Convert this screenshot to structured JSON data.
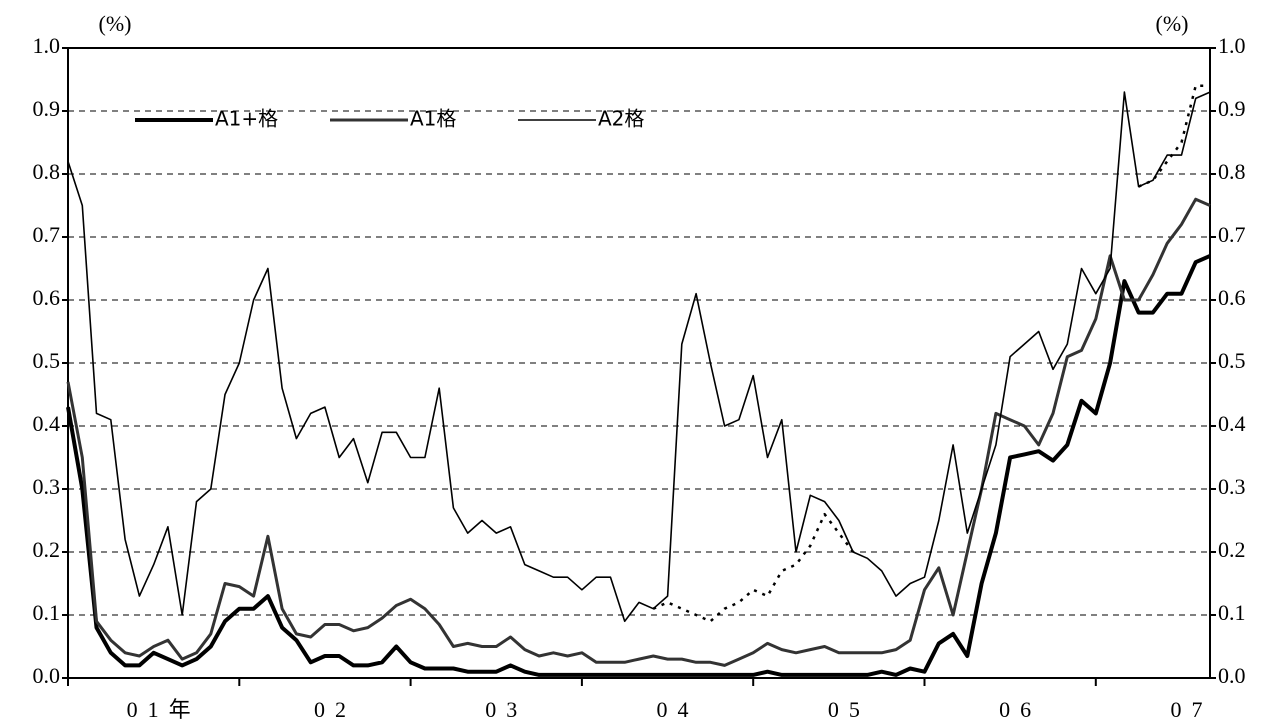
{
  "chart_data": {
    "type": "line",
    "y_label": "(%)",
    "y2_label": "(%)",
    "categories": [
      null,
      null,
      null,
      null,
      null,
      null,
      "01年",
      null,
      null,
      null,
      null,
      null,
      null,
      null,
      null,
      null,
      null,
      null,
      "02",
      null,
      null,
      null,
      null,
      null,
      null,
      null,
      null,
      null,
      null,
      null,
      "03",
      null,
      null,
      null,
      null,
      null,
      null,
      null,
      null,
      null,
      null,
      null,
      "04",
      null,
      null,
      null,
      null,
      null,
      null,
      null,
      null,
      null,
      null,
      null,
      "05",
      null,
      null,
      null,
      null,
      null,
      null,
      null,
      null,
      null,
      null,
      null,
      "06",
      null,
      null,
      null,
      null,
      null,
      null,
      null,
      null,
      null,
      null,
      null,
      "07",
      null,
      null
    ],
    "series": [
      {
        "name": "A1+格",
        "color": "#000000",
        "line_width": 4,
        "values": [
          0.43,
          0.3,
          0.08,
          0.04,
          0.02,
          0.02,
          0.04,
          0.03,
          0.02,
          0.03,
          0.05,
          0.09,
          0.11,
          0.11,
          0.13,
          0.08,
          0.06,
          0.025,
          0.035,
          0.035,
          0.02,
          0.02,
          0.025,
          0.05,
          0.025,
          0.015,
          0.015,
          0.015,
          0.01,
          0.01,
          0.01,
          0.02,
          0.01,
          0.005,
          0.005,
          0.005,
          0.005,
          0.005,
          0.005,
          0.005,
          0.005,
          0.005,
          0.005,
          0.005,
          0.005,
          0.005,
          0.005,
          0.005,
          0.005,
          0.01,
          0.005,
          0.005,
          0.005,
          0.005,
          0.005,
          0.005,
          0.005,
          0.01,
          0.005,
          0.015,
          0.01,
          0.055,
          0.07,
          0.035,
          0.15,
          0.23,
          0.35,
          0.355,
          0.36,
          0.345,
          0.37,
          0.44,
          0.42,
          0.5,
          0.63,
          0.58,
          0.58,
          0.61,
          0.61,
          0.66,
          0.67
        ]
      },
      {
        "name": "A1格",
        "color": "#333333",
        "line_width": 3,
        "values": [
          0.47,
          0.35,
          0.09,
          0.06,
          0.04,
          0.035,
          0.05,
          0.06,
          0.03,
          0.04,
          0.07,
          0.15,
          0.145,
          0.13,
          0.225,
          0.11,
          0.07,
          0.065,
          0.085,
          0.085,
          0.075,
          0.08,
          0.095,
          0.115,
          0.125,
          0.11,
          0.085,
          0.05,
          0.055,
          0.05,
          0.05,
          0.065,
          0.045,
          0.035,
          0.04,
          0.035,
          0.04,
          0.025,
          0.025,
          0.025,
          0.03,
          0.035,
          0.03,
          0.03,
          0.025,
          0.025,
          0.02,
          0.03,
          0.04,
          0.055,
          0.045,
          0.04,
          0.045,
          0.05,
          0.04,
          0.04,
          0.04,
          0.04,
          0.045,
          0.06,
          0.14,
          0.175,
          0.1,
          0.2,
          0.3,
          0.42,
          0.41,
          0.4,
          0.37,
          0.42,
          0.51,
          0.52,
          0.57,
          0.67,
          0.6,
          0.6,
          0.64,
          0.69,
          0.72,
          0.76,
          0.75
        ]
      },
      {
        "name": "A2格",
        "color": "#000000",
        "line_width": 1.6,
        "values": [
          0.82,
          0.75,
          0.42,
          0.41,
          0.22,
          0.13,
          0.18,
          0.24,
          0.1,
          0.28,
          0.3,
          0.45,
          0.5,
          0.6,
          0.65,
          0.46,
          0.38,
          0.42,
          0.43,
          0.35,
          0.38,
          0.31,
          0.39,
          0.39,
          0.35,
          0.35,
          0.46,
          0.27,
          0.23,
          0.25,
          0.23,
          0.24,
          0.18,
          0.17,
          0.16,
          0.16,
          0.14,
          0.16,
          0.16,
          0.09,
          0.12,
          0.11,
          0.13,
          0.53,
          0.61,
          0.5,
          0.4,
          0.41,
          0.48,
          0.35,
          0.41,
          0.2,
          0.29,
          0.28,
          0.25,
          0.2,
          0.19,
          0.17,
          0.13,
          0.15,
          0.16,
          0.25,
          0.37,
          0.23,
          0.3,
          0.37,
          0.51,
          0.53,
          0.55,
          0.49,
          0.53,
          0.65,
          0.61,
          0.65,
          0.93,
          0.78,
          0.79,
          0.83,
          0.83,
          0.92,
          0.93
        ]
      },
      {
        "color": "#000000",
        "line_width": 2.5,
        "dashed": true,
        "values": [
          null,
          null,
          null,
          null,
          null,
          null,
          null,
          null,
          null,
          null,
          null,
          null,
          null,
          null,
          null,
          null,
          null,
          null,
          null,
          null,
          null,
          null,
          null,
          null,
          null,
          null,
          null,
          null,
          null,
          null,
          null,
          null,
          null,
          null,
          null,
          null,
          null,
          null,
          null,
          null,
          null,
          0.11,
          0.12,
          0.11,
          0.1,
          0.09,
          0.11,
          0.12,
          0.14,
          0.13,
          0.17,
          0.18,
          0.21,
          0.26,
          0.23,
          0.2,
          null,
          null,
          null,
          null,
          null,
          null,
          null,
          null,
          null,
          null,
          null,
          null,
          null,
          null,
          null,
          null,
          null,
          null,
          null,
          0.78,
          0.79,
          0.82,
          0.85,
          0.94,
          0.94
        ]
      }
    ],
    "ylim": [
      0,
      1.0
    ],
    "yticks": [
      {
        "value": 0,
        "label": "0.0"
      },
      0.1,
      0.2,
      0.3,
      0.4,
      0.5,
      0.6,
      0.7,
      0.8,
      0.9,
      {
        "value": 1.0,
        "label": "1.0"
      }
    ],
    "y2lim": [
      0,
      1.0
    ],
    "y2ticks": [
      {
        "value": 0,
        "label": "0.0"
      },
      0.1,
      0.2,
      0.3,
      0.4,
      0.5,
      0.6,
      0.7,
      0.8,
      0.9,
      {
        "value": 1.0,
        "label": "1.0"
      }
    ],
    "grid": true
  }
}
